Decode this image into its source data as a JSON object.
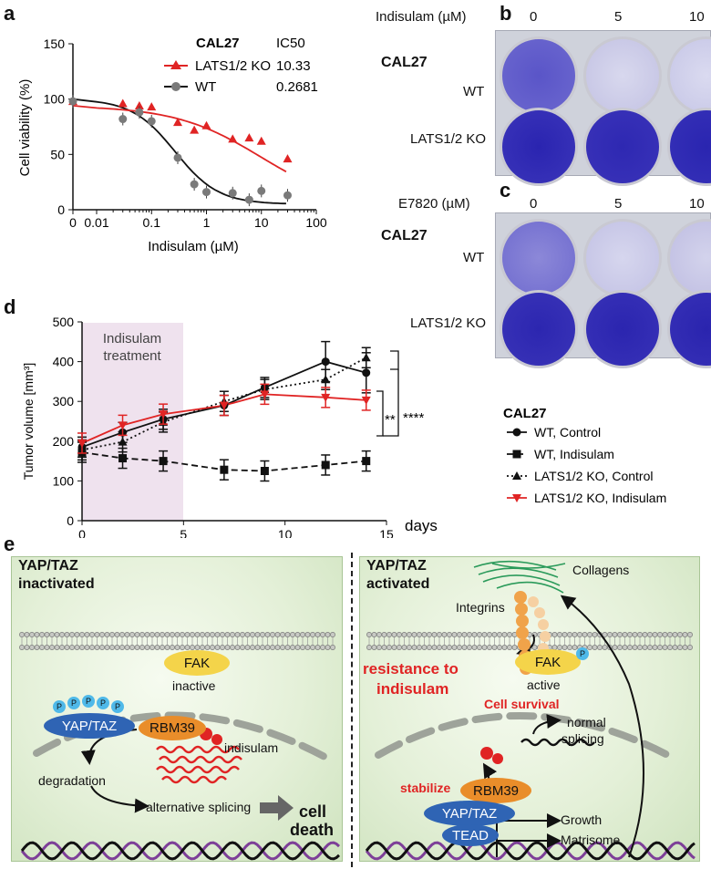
{
  "panels": {
    "a": "a",
    "b": "b",
    "c": "c",
    "d": "d",
    "e": "e"
  },
  "panel_a": {
    "ylabel": "Cell viability (%)",
    "xlabel": "Indisulam (µM)",
    "legend_title": "CAL27",
    "legend_ic50": "IC50",
    "series": [
      {
        "name": "LATS1/2 KO",
        "ic50": "10.33",
        "color": "#e02424"
      },
      {
        "name": "WT",
        "ic50": "0.2681",
        "color": "#7a7a7a"
      }
    ],
    "yticks": [
      "0",
      "50",
      "100",
      "150"
    ],
    "xticks": [
      "0",
      "0.01",
      "0.1",
      "1",
      "10",
      "100"
    ]
  },
  "panel_b": {
    "header": "Indisulam (µM)",
    "doses": [
      "0",
      "5",
      "10"
    ],
    "cell_line": "CAL27",
    "rows": [
      "WT",
      "LATS1/2 KO"
    ]
  },
  "panel_c": {
    "header": "E7820 (µM)",
    "doses": [
      "0",
      "5",
      "10"
    ],
    "cell_line": "CAL27",
    "rows": [
      "WT",
      "LATS1/2 KO"
    ]
  },
  "panel_d": {
    "ylabel": "Tumor volume [mm³]",
    "xlabel": "days",
    "shade_label_1": "Indisulam",
    "shade_label_2": "treatment",
    "legend_title": "CAL27",
    "sig1": "**",
    "sig2": "****",
    "yticks": [
      "0",
      "100",
      "200",
      "300",
      "400",
      "500"
    ],
    "xticks": [
      "0",
      "5",
      "10",
      "15"
    ]
  },
  "chart_data": [
    {
      "type": "scatter",
      "x_scale": "log",
      "xlabel": "Indisulam (µM)",
      "ylabel": "Cell viability (%)",
      "ylim": [
        0,
        150
      ],
      "xlim": [
        0.01,
        100
      ],
      "legend": "top-right",
      "series": [
        {
          "name": "LATS1/2 KO",
          "ic50": 10.33,
          "x": [
            0.0,
            0.03,
            0.06,
            0.1,
            0.3,
            0.6,
            1,
            3,
            6,
            10,
            30
          ],
          "y": [
            98,
            96,
            94,
            93,
            79,
            72,
            76,
            64,
            65,
            62,
            46
          ]
        },
        {
          "name": "WT",
          "ic50": 0.2681,
          "x": [
            0.0,
            0.03,
            0.06,
            0.1,
            0.3,
            0.6,
            1,
            3,
            6,
            10,
            30
          ],
          "y": [
            98,
            82,
            88,
            80,
            47,
            23,
            16,
            15,
            9,
            17,
            13
          ]
        }
      ]
    },
    {
      "type": "line",
      "xlabel": "days",
      "ylabel": "Tumor volume [mm³]",
      "ylim": [
        0,
        500
      ],
      "xlim": [
        0,
        15
      ],
      "legend": "right",
      "series": [
        {
          "name": "WT, Control",
          "x": [
            0,
            2,
            4,
            7,
            9,
            12,
            14
          ],
          "y": [
            185,
            222,
            255,
            290,
            335,
            400,
            372
          ]
        },
        {
          "name": "WT, Indisulam",
          "x": [
            0,
            2,
            4,
            7,
            9,
            12,
            14
          ],
          "y": [
            172,
            157,
            150,
            128,
            125,
            140,
            150
          ]
        },
        {
          "name": "LATS1/2 KO, Control",
          "x": [
            0,
            2,
            4,
            7,
            9,
            12,
            14
          ],
          "y": [
            178,
            198,
            248,
            300,
            330,
            355,
            410
          ]
        },
        {
          "name": "LATS1/2 KO, Indisulam",
          "x": [
            0,
            2,
            4,
            7,
            9,
            12,
            14
          ],
          "y": [
            195,
            240,
            268,
            290,
            318,
            310,
            303
          ]
        }
      ]
    }
  ],
  "panel_e": {
    "left_title_1": "YAP/TAZ",
    "left_title_2": "inactivated",
    "right_title_1": "YAP/TAZ",
    "right_title_2": "activated",
    "fak": "FAK",
    "inactive": "inactive",
    "active": "active",
    "yaptaz": "YAP/TAZ",
    "rbm39": "RBM39",
    "indisulam": "indisulam",
    "degradation": "degradation",
    "alt_splicing": "alternative splicing",
    "cell_death_1": "cell",
    "cell_death_2": "death",
    "p": "P",
    "collagens": "Collagens",
    "integrins": "Integrins",
    "resistance_1": "resistance to",
    "resistance_2": "indisulam",
    "cell_survival": "Cell survival",
    "normal_splicing_1": "normal",
    "normal_splicing_2": "splicing",
    "stabilize": "stabilize",
    "tead": "TEAD",
    "growth": "Growth",
    "matrisome": "Matrisome"
  }
}
